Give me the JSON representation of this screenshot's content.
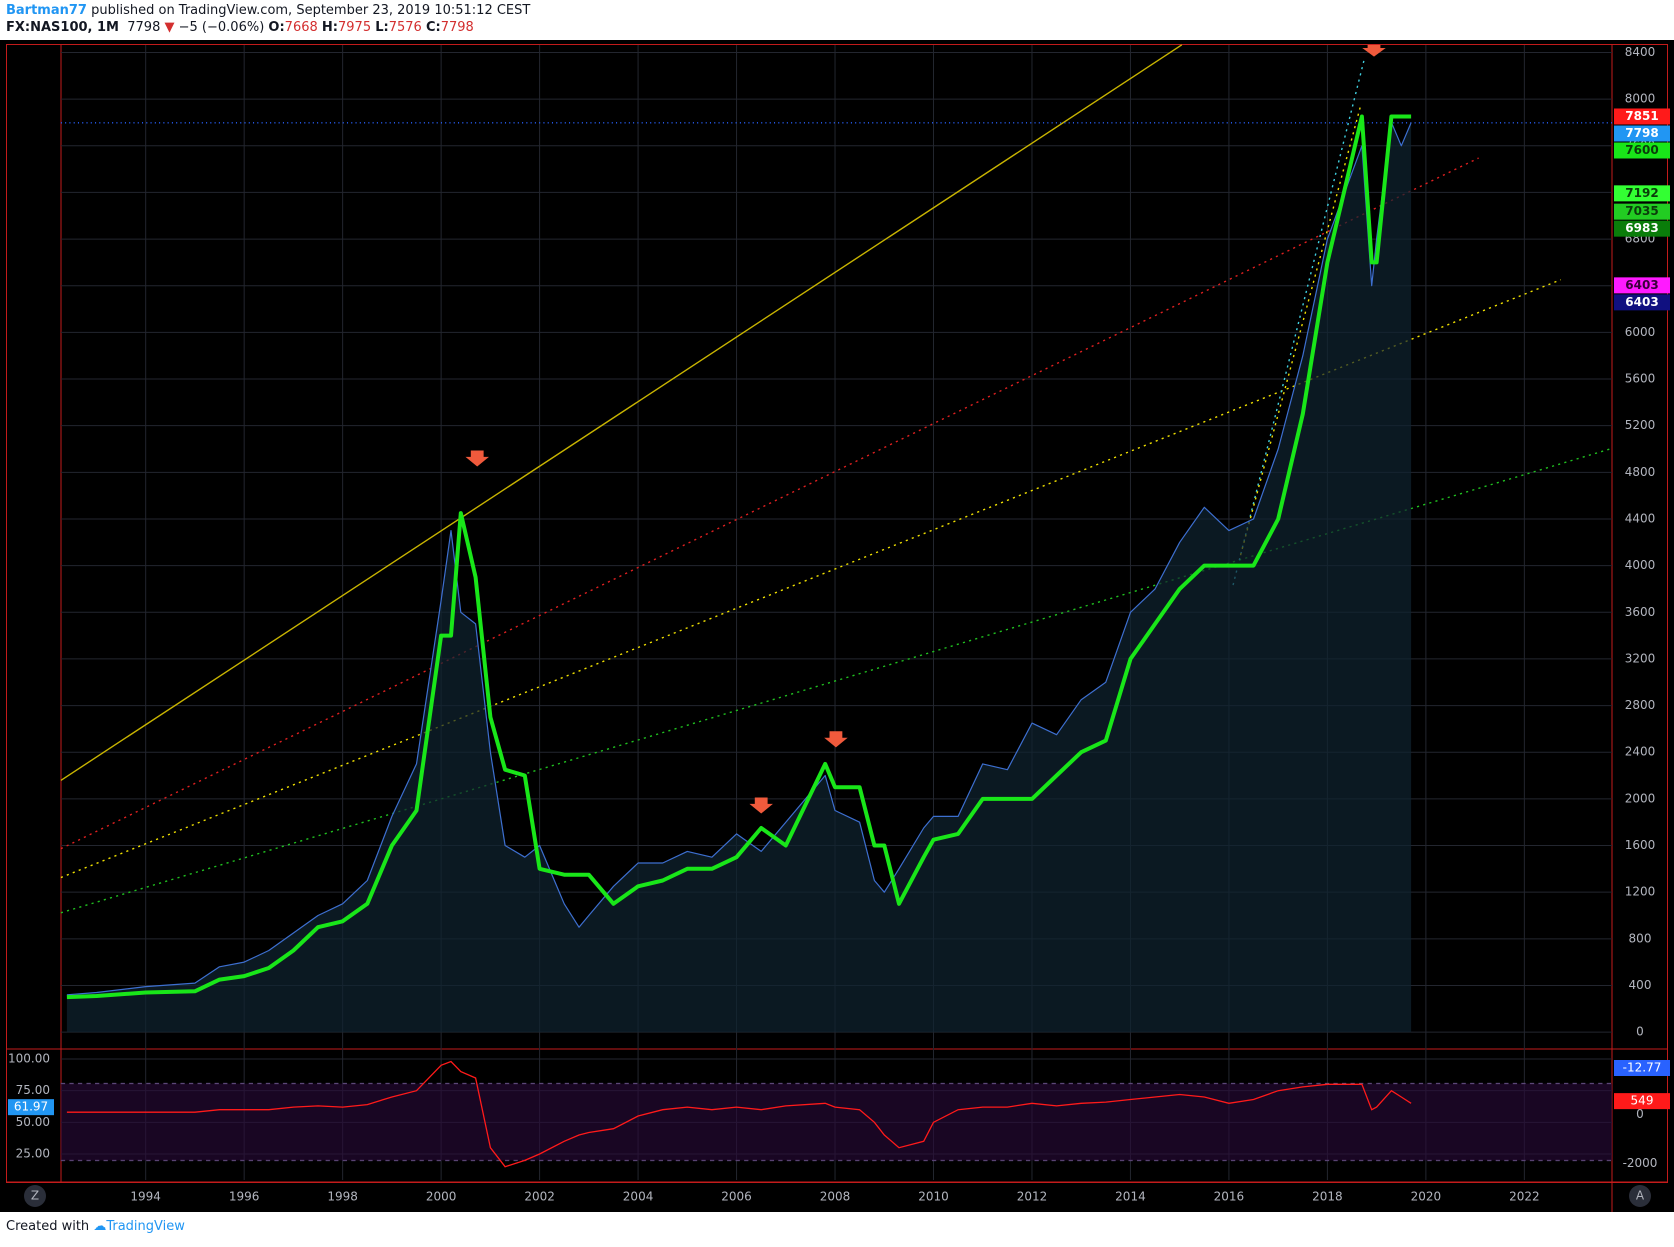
{
  "chart_data": {
    "type": "line",
    "author": "Bartman77",
    "title": "published on TradingView.com, September 23, 2019 10:51:12 CEST",
    "symbol": "FX:NAS100, 1M",
    "last": 7798,
    "change": "−5 (−0.06%)",
    "ohlc": [
      {
        "label": "O:",
        "value": 7668
      },
      {
        "label": "H:",
        "value": 7975
      },
      {
        "label": "L:",
        "value": 7576
      },
      {
        "label": "C:",
        "value": 7798
      }
    ],
    "x": [
      1992.4,
      1993,
      1994,
      1995,
      1995.5,
      1996,
      1996.5,
      1997,
      1997.5,
      1998,
      1998.5,
      1999,
      1999.5,
      2000,
      2000.2,
      2000.4,
      2000.7,
      2001,
      2001.3,
      2001.7,
      2002,
      2002.5,
      2002.8,
      2003,
      2003.5,
      2004,
      2004.5,
      2005,
      2005.5,
      2006,
      2006.5,
      2007,
      2007.8,
      2008,
      2008.5,
      2008.8,
      2009,
      2009.3,
      2009.8,
      2010,
      2010.5,
      2011,
      2011.5,
      2012,
      2012.5,
      2013,
      2013.5,
      2014,
      2014.5,
      2015,
      2015.5,
      2016,
      2016.5,
      2017,
      2017.5,
      2018,
      2018.7,
      2018.9,
      2019,
      2019.3,
      2019.5,
      2019.7
    ],
    "series": [
      {
        "color": "#3d6fd0",
        "values": [
          320,
          340,
          390,
          420,
          560,
          600,
          700,
          850,
          1000,
          1100,
          1300,
          1850,
          2300,
          3700,
          4300,
          3600,
          3500,
          2400,
          1600,
          1500,
          1600,
          1100,
          900,
          1000,
          1250,
          1450,
          1450,
          1550,
          1500,
          1700,
          1550,
          1800,
          2200,
          1900,
          1800,
          1300,
          1200,
          1400,
          1750,
          1850,
          1850,
          2300,
          2250,
          2650,
          2550,
          2850,
          3000,
          3600,
          3800,
          4200,
          4500,
          4300,
          4400,
          5000,
          5800,
          6800,
          7600,
          6400,
          6800,
          7800,
          7600,
          7798
        ]
      },
      {
        "color": "#19e619",
        "values": [
          300,
          310,
          340,
          350,
          450,
          480,
          550,
          700,
          900,
          950,
          1100,
          1600,
          1900,
          3400,
          3400,
          4450,
          3900,
          2700,
          2250,
          2200,
          1400,
          1350,
          1350,
          1350,
          1100,
          1250,
          1300,
          1400,
          1400,
          1500,
          1750,
          1600,
          2300,
          2100,
          2100,
          1600,
          1600,
          1100,
          1500,
          1650,
          1700,
          2000,
          2000,
          2000,
          2200,
          2400,
          2500,
          3200,
          3500,
          3800,
          4000,
          4000,
          4000,
          4400,
          5300,
          6600,
          7851,
          6600,
          6600,
          7851,
          7851,
          7851
        ]
      }
    ],
    "xlim": [
      1992.28,
      2023.78
    ],
    "xticks": [
      1994,
      1996,
      1998,
      2000,
      2002,
      2004,
      2006,
      2008,
      2010,
      2012,
      2014,
      2016,
      2018,
      2020,
      2022
    ],
    "ylim": [
      -119,
      8464
    ],
    "yticks": [
      0,
      400,
      800,
      1200,
      1600,
      2000,
      2400,
      2800,
      3200,
      3600,
      4000,
      4400,
      4800,
      5200,
      5600,
      6000,
      6400,
      6800,
      7200,
      7600,
      8000,
      8400
    ],
    "grid": true,
    "price_labels": [
      {
        "value": 7851,
        "color": "#ff1a1a",
        "text_color": "#ffffff"
      },
      {
        "value": 7798,
        "color": "#2196f3",
        "text_color": "#ffffff"
      },
      {
        "value": 7600,
        "color": "#19e619",
        "text_color": "#0b3d0b"
      },
      {
        "value": 7192,
        "color": "#33ff33",
        "text_color": "#0b3d0b"
      },
      {
        "value": 7035,
        "color": "#22cc22",
        "text_color": "#0b3d0b"
      },
      {
        "value": 6983,
        "color": "#0a7d0a",
        "text_color": "#ffffff"
      },
      {
        "value": 6403,
        "color": "#ff1aff",
        "text_color": "#3a003a"
      },
      {
        "value": 6403,
        "color": "#101080",
        "text_color": "#ffffff"
      }
    ],
    "oscillator": {
      "color": "#ff1a1a",
      "values": [
        58,
        58,
        58,
        58,
        60,
        60,
        60,
        62,
        63,
        62,
        64,
        70,
        75,
        95,
        98,
        90,
        85,
        30,
        15,
        20,
        25,
        35,
        40,
        42,
        45,
        55,
        60,
        62,
        60,
        62,
        60,
        63,
        65,
        62,
        60,
        50,
        40,
        30,
        35,
        50,
        60,
        62,
        62,
        65,
        63,
        65,
        66,
        68,
        70,
        72,
        70,
        65,
        68,
        75,
        78,
        80,
        80,
        60,
        62,
        75,
        70,
        65
      ],
      "ylim": [
        4.5,
        105.5
      ],
      "yticks": [
        {
          "value": 100,
          "label": "100.00"
        },
        {
          "value": 75,
          "label": "75.00"
        },
        {
          "value": 50,
          "label": "50.00"
        },
        {
          "value": 25,
          "label": "25.00"
        }
      ],
      "last": {
        "value": 61.97,
        "label": "61.97"
      },
      "y2lim": [
        -2664,
        2550
      ],
      "y2ticks": [
        0,
        -2000
      ],
      "y2_labels": [
        {
          "value": -12.77,
          "color": "#2962ff"
        },
        {
          "value": 549,
          "color": "#ff1a1a"
        }
      ]
    },
    "buttons": [
      "Z",
      "A"
    ],
    "footer": [
      "Created with",
      "TradingView"
    ]
  }
}
